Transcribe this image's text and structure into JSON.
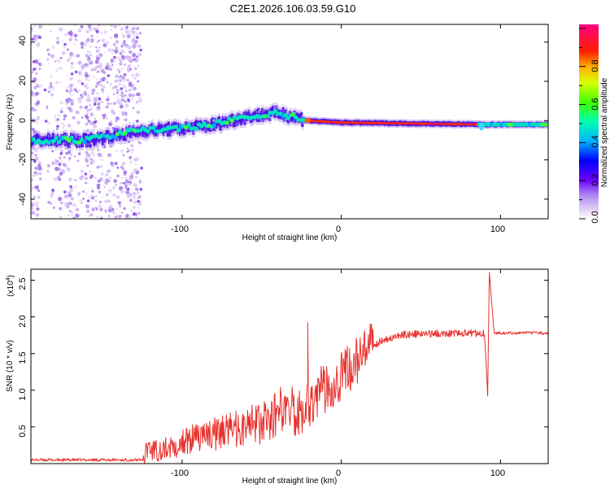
{
  "title": "C2E1.2026.106.03.59.G10",
  "chart_data": [
    {
      "type": "heatmap",
      "xlabel": "Height of straight line (km)",
      "ylabel": "Frequency (Hz)",
      "xlim": [
        -195,
        130
      ],
      "ylim": [
        -50,
        49
      ],
      "xticks": [
        -100,
        0,
        100
      ],
      "yticks": [
        -40,
        -20,
        0,
        20,
        40
      ],
      "colorbar": {
        "label": "Normalized spectral amplitude",
        "range": [
          0,
          1
        ],
        "ticks": [
          "0.0",
          "0.2",
          "0.4",
          "0.6",
          "0.8"
        ]
      },
      "ridge": {
        "description_points": [
          {
            "x": -195,
            "y": -10
          },
          {
            "x": -160,
            "y": -10
          },
          {
            "x": -125,
            "y": -5
          },
          {
            "x": -100,
            "y": -4
          },
          {
            "x": -80,
            "y": -2
          },
          {
            "x": -60,
            "y": 2
          },
          {
            "x": -40,
            "y": 4
          },
          {
            "x": -22,
            "y": 0
          },
          {
            "x": 0,
            "y": -1
          },
          {
            "x": 90,
            "y": -2
          },
          {
            "x": 130,
            "y": -2
          }
        ]
      }
    },
    {
      "type": "line",
      "xlabel": "Height of straight line (km)",
      "ylabel": "SNR (10 * v/v)",
      "y_multiplier": "(x10^4)",
      "xlim": [
        -195,
        130
      ],
      "ylim": [
        0,
        2.65
      ],
      "xticks": [
        -100,
        0,
        100
      ],
      "yticks": [
        "0.5",
        "1.0",
        "1.5",
        "2.0",
        "2.5"
      ],
      "color": "#e8302c",
      "trend_points": [
        {
          "x": -195,
          "y": 0.05
        },
        {
          "x": -125,
          "y": 0.05
        },
        {
          "x": -110,
          "y": 0.1
        },
        {
          "x": -90,
          "y": 0.2
        },
        {
          "x": -70,
          "y": 0.25
        },
        {
          "x": -50,
          "y": 0.3
        },
        {
          "x": -35,
          "y": 0.5
        },
        {
          "x": -25,
          "y": 0.75
        },
        {
          "x": -15,
          "y": 0.95
        },
        {
          "x": -5,
          "y": 1.1
        },
        {
          "x": 5,
          "y": 1.3
        },
        {
          "x": 15,
          "y": 1.5
        },
        {
          "x": 25,
          "y": 1.68
        },
        {
          "x": 40,
          "y": 1.76
        },
        {
          "x": 70,
          "y": 1.78
        },
        {
          "x": 90,
          "y": 1.78
        },
        {
          "x": 92,
          "y": 0.92
        },
        {
          "x": 93,
          "y": 2.62
        },
        {
          "x": 96,
          "y": 1.78
        },
        {
          "x": 130,
          "y": 1.78
        }
      ],
      "spikes": [
        {
          "x": -21,
          "y": 1.92
        },
        {
          "x": -22,
          "y": 1.75
        }
      ]
    }
  ],
  "labels": {
    "xlabel": "Height of straight line (km)",
    "ylabel_top": "Frequency (Hz)",
    "ylabel_bottom": "SNR (10 * v/v)",
    "colorbar_label": "Normalized spectral amplitude",
    "multiplier_base": "(x10",
    "multiplier_exp": "4",
    "multiplier_close": ")"
  },
  "tick_labels": {
    "x": [
      "-100",
      "0",
      "100"
    ],
    "y_top": [
      "40",
      "20",
      "0",
      "-20",
      "-40"
    ],
    "y_bottom": [
      "2.5",
      "2.0",
      "1.5",
      "1.0",
      "0.5"
    ],
    "colorbar": [
      "0.8",
      "0.6",
      "0.4",
      "0.2",
      "0.0"
    ]
  }
}
